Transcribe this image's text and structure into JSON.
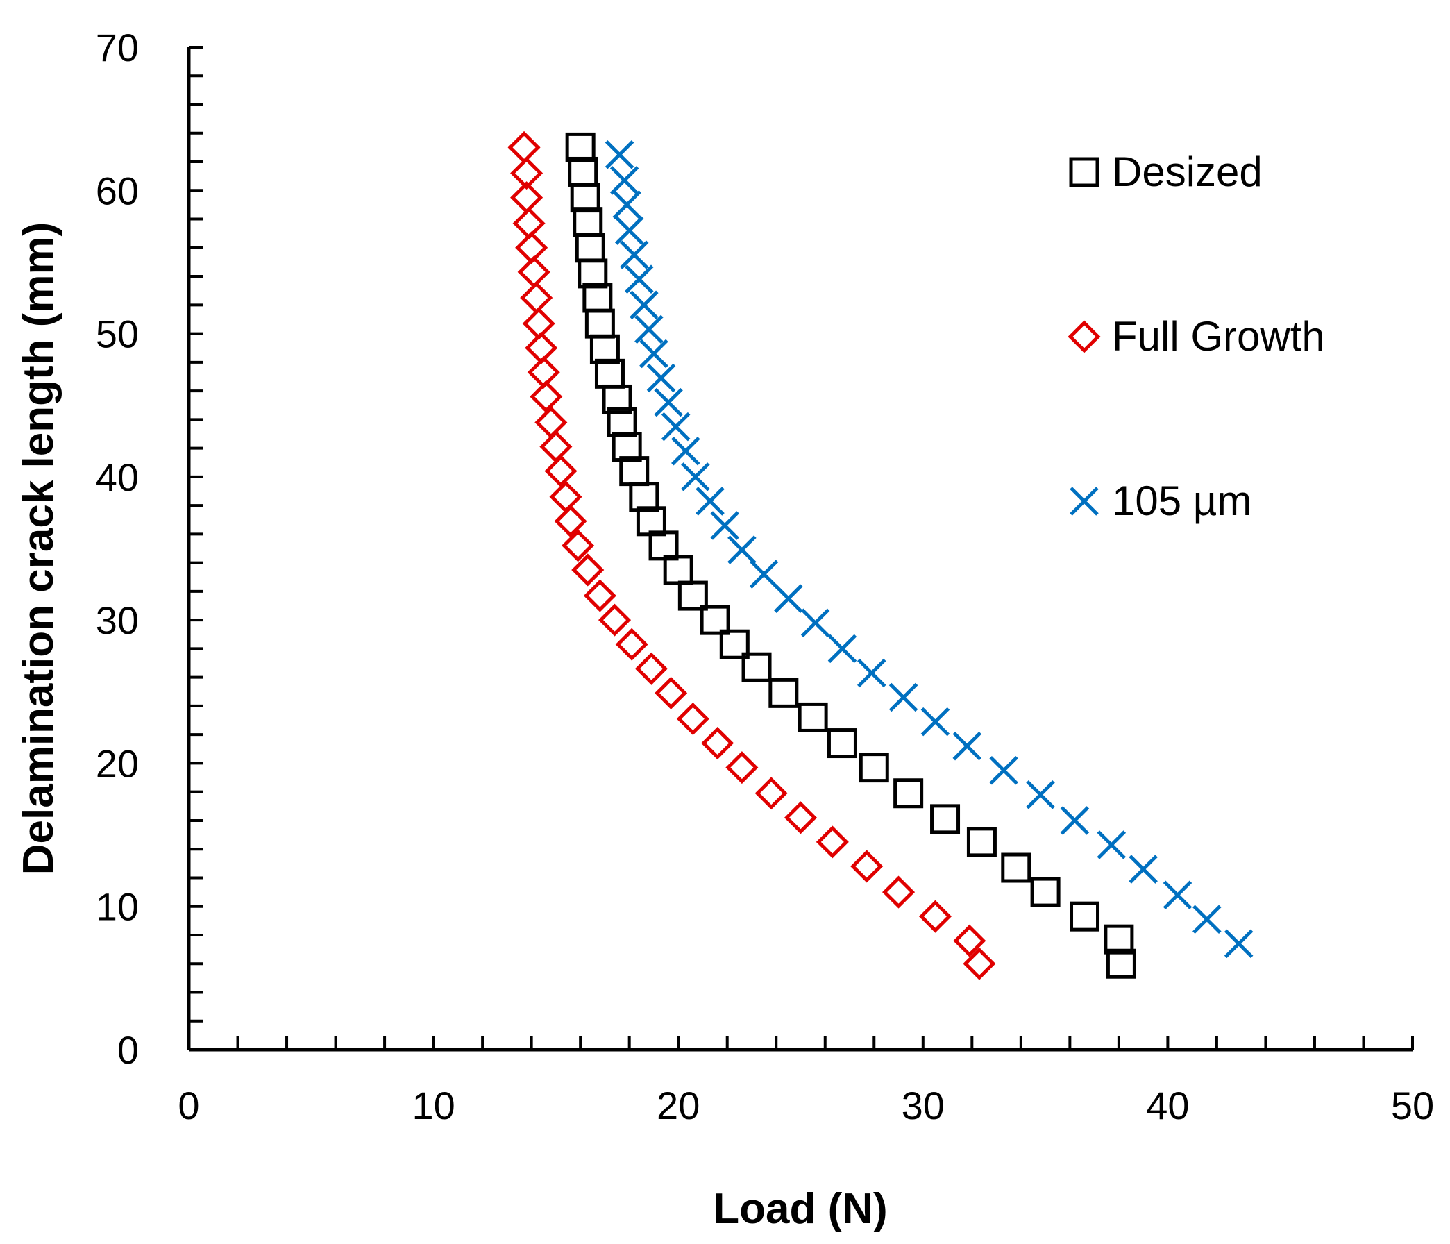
{
  "chart_data": {
    "type": "scatter",
    "title": "",
    "xlabel": "Load (N)",
    "ylabel": "Delamination crack length (mm)",
    "xlim": [
      0,
      50
    ],
    "ylim": [
      0,
      70
    ],
    "x_ticks": [
      0,
      10,
      20,
      30,
      40,
      50
    ],
    "y_ticks": [
      0,
      10,
      20,
      30,
      40,
      50,
      60,
      70
    ],
    "x_minor_step": 2,
    "y_minor_step": 2,
    "grid": false,
    "legend_position": "top-right",
    "series": [
      {
        "name": "Desized",
        "marker": "square",
        "color": "#000000",
        "points": [
          [
            16.0,
            63.0
          ],
          [
            16.1,
            61.3
          ],
          [
            16.2,
            59.5
          ],
          [
            16.3,
            57.8
          ],
          [
            16.4,
            56.0
          ],
          [
            16.5,
            54.2
          ],
          [
            16.7,
            52.5
          ],
          [
            16.8,
            50.7
          ],
          [
            17.0,
            48.9
          ],
          [
            17.2,
            47.2
          ],
          [
            17.5,
            45.4
          ],
          [
            17.7,
            43.8
          ],
          [
            17.9,
            42.1
          ],
          [
            18.2,
            40.4
          ],
          [
            18.6,
            38.6
          ],
          [
            18.9,
            36.9
          ],
          [
            19.4,
            35.2
          ],
          [
            20.0,
            33.5
          ],
          [
            20.6,
            31.7
          ],
          [
            21.5,
            30.0
          ],
          [
            22.3,
            28.3
          ],
          [
            23.2,
            26.7
          ],
          [
            24.3,
            24.9
          ],
          [
            25.5,
            23.2
          ],
          [
            26.7,
            21.4
          ],
          [
            28.0,
            19.7
          ],
          [
            29.4,
            17.9
          ],
          [
            30.9,
            16.1
          ],
          [
            32.4,
            14.5
          ],
          [
            33.8,
            12.7
          ],
          [
            35.0,
            11.0
          ],
          [
            36.6,
            9.3
          ],
          [
            38.0,
            7.7
          ],
          [
            38.1,
            6.0
          ]
        ]
      },
      {
        "name": "Full Growth",
        "marker": "diamond",
        "color": "#e00000",
        "points": [
          [
            13.7,
            63.0
          ],
          [
            13.8,
            61.2
          ],
          [
            13.8,
            59.5
          ],
          [
            13.9,
            57.7
          ],
          [
            14.0,
            56.0
          ],
          [
            14.1,
            54.3
          ],
          [
            14.2,
            52.5
          ],
          [
            14.3,
            50.7
          ],
          [
            14.4,
            49.0
          ],
          [
            14.5,
            47.3
          ],
          [
            14.6,
            45.6
          ],
          [
            14.8,
            43.8
          ],
          [
            15.0,
            42.1
          ],
          [
            15.2,
            40.4
          ],
          [
            15.4,
            38.6
          ],
          [
            15.6,
            36.9
          ],
          [
            15.9,
            35.2
          ],
          [
            16.3,
            33.5
          ],
          [
            16.8,
            31.7
          ],
          [
            17.4,
            30.0
          ],
          [
            18.1,
            28.3
          ],
          [
            18.9,
            26.6
          ],
          [
            19.7,
            24.9
          ],
          [
            20.6,
            23.1
          ],
          [
            21.6,
            21.4
          ],
          [
            22.6,
            19.7
          ],
          [
            23.8,
            17.9
          ],
          [
            25.0,
            16.2
          ],
          [
            26.3,
            14.5
          ],
          [
            27.7,
            12.8
          ],
          [
            29.0,
            11.0
          ],
          [
            30.5,
            9.3
          ],
          [
            31.9,
            7.6
          ],
          [
            32.3,
            6.0
          ]
        ]
      },
      {
        "name": "105 µm",
        "marker": "x",
        "color": "#0070c0",
        "points": [
          [
            17.6,
            62.5
          ],
          [
            17.8,
            60.7
          ],
          [
            17.9,
            59.0
          ],
          [
            18.0,
            57.2
          ],
          [
            18.2,
            55.5
          ],
          [
            18.4,
            53.8
          ],
          [
            18.6,
            52.0
          ],
          [
            18.8,
            50.3
          ],
          [
            19.0,
            48.6
          ],
          [
            19.3,
            46.9
          ],
          [
            19.6,
            45.2
          ],
          [
            19.9,
            43.5
          ],
          [
            20.3,
            41.8
          ],
          [
            20.7,
            40.0
          ],
          [
            21.3,
            38.3
          ],
          [
            21.9,
            36.6
          ],
          [
            22.6,
            34.9
          ],
          [
            23.5,
            33.2
          ],
          [
            24.5,
            31.5
          ],
          [
            25.6,
            29.8
          ],
          [
            26.7,
            28.0
          ],
          [
            27.9,
            26.3
          ],
          [
            29.2,
            24.6
          ],
          [
            30.5,
            22.9
          ],
          [
            31.8,
            21.2
          ],
          [
            33.3,
            19.5
          ],
          [
            34.8,
            17.8
          ],
          [
            36.2,
            16.0
          ],
          [
            37.7,
            14.3
          ],
          [
            39.0,
            12.6
          ],
          [
            40.4,
            10.8
          ],
          [
            41.6,
            9.1
          ],
          [
            42.9,
            7.4
          ]
        ]
      }
    ]
  }
}
